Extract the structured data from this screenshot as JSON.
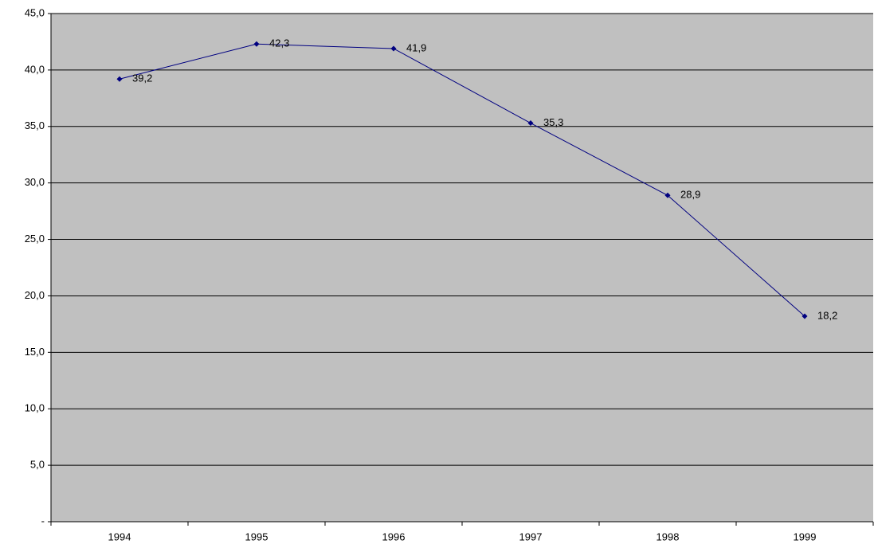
{
  "chart_data": {
    "type": "line",
    "categories": [
      "1994",
      "1995",
      "1996",
      "1997",
      "1998",
      "1999"
    ],
    "values": [
      39.2,
      42.3,
      41.9,
      35.3,
      28.9,
      18.2
    ],
    "value_labels": [
      "39,2",
      "42,3",
      "41,9",
      "35,3",
      "28,9",
      "18,2"
    ],
    "color": "#000080",
    "ylim": [
      0,
      45
    ],
    "yticks": [
      {
        "value": 0,
        "label": "-"
      },
      {
        "value": 5,
        "label": "5,0"
      },
      {
        "value": 10,
        "label": "10,0"
      },
      {
        "value": 15,
        "label": "15,0"
      },
      {
        "value": 20,
        "label": "20,0"
      },
      {
        "value": 25,
        "label": "25,0"
      },
      {
        "value": 30,
        "label": "30,0"
      },
      {
        "value": 35,
        "label": "35,0"
      },
      {
        "value": 40,
        "label": "40,0"
      },
      {
        "value": 45,
        "label": "45,0"
      }
    ],
    "grid": true
  }
}
